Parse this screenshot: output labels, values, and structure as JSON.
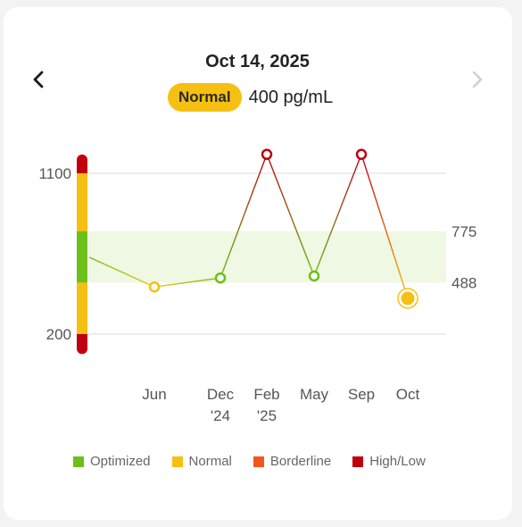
{
  "header": {
    "date": "Oct 14, 2025",
    "status_badge": "Normal",
    "current_value": "400 pg/mL",
    "prev_icon": "chevron-left-icon",
    "next_icon": "chevron-right-icon"
  },
  "colors": {
    "optimized": "#6cc01a",
    "normal": "#f6c012",
    "borderline": "#f2561d",
    "high_low": "#c0000f",
    "optimal_band": "#eef8e2",
    "grid": "#dedede"
  },
  "chart_data": {
    "type": "line",
    "unit": "pg/mL",
    "y_ticks_left": [
      "1100",
      "200"
    ],
    "y_ticks_right": [
      "775",
      "488"
    ],
    "optimal_range": [
      488,
      775
    ],
    "ylim": [
      200,
      1100
    ],
    "x_labels": [
      {
        "line1": "Jun",
        "line2": ""
      },
      {
        "line1": "Dec",
        "line2": "'24"
      },
      {
        "line1": "Feb",
        "line2": "'25"
      },
      {
        "line1": "May",
        "line2": ""
      },
      {
        "line1": "Sep",
        "line2": ""
      },
      {
        "line1": "Oct",
        "line2": ""
      }
    ],
    "points": [
      {
        "x": "Jun",
        "y": 464,
        "status": "normal"
      },
      {
        "x": "Dec '24",
        "y": 514,
        "status": "optimized"
      },
      {
        "x": "Feb '25",
        "y": 1206,
        "status": "high_low"
      },
      {
        "x": "May",
        "y": 525,
        "status": "optimized"
      },
      {
        "x": "Sep",
        "y": 1206,
        "status": "high_low"
      },
      {
        "x": "Oct",
        "y": 400,
        "status": "normal",
        "selected": true
      }
    ],
    "incoming_value": 630,
    "scale_bar_ranges": [
      {
        "status": "high_low",
        "from": 1205,
        "to": 1100
      },
      {
        "status": "normal",
        "from": 1100,
        "to": 775
      },
      {
        "status": "optimized",
        "from": 775,
        "to": 488
      },
      {
        "status": "normal",
        "from": 488,
        "to": 200
      },
      {
        "status": "high_low",
        "from": 200,
        "to": 88
      }
    ]
  },
  "legend": [
    {
      "label": "Optimized",
      "status": "optimized"
    },
    {
      "label": "Normal",
      "status": "normal"
    },
    {
      "label": "Borderline",
      "status": "borderline"
    },
    {
      "label": "High/Low",
      "status": "high_low"
    }
  ]
}
